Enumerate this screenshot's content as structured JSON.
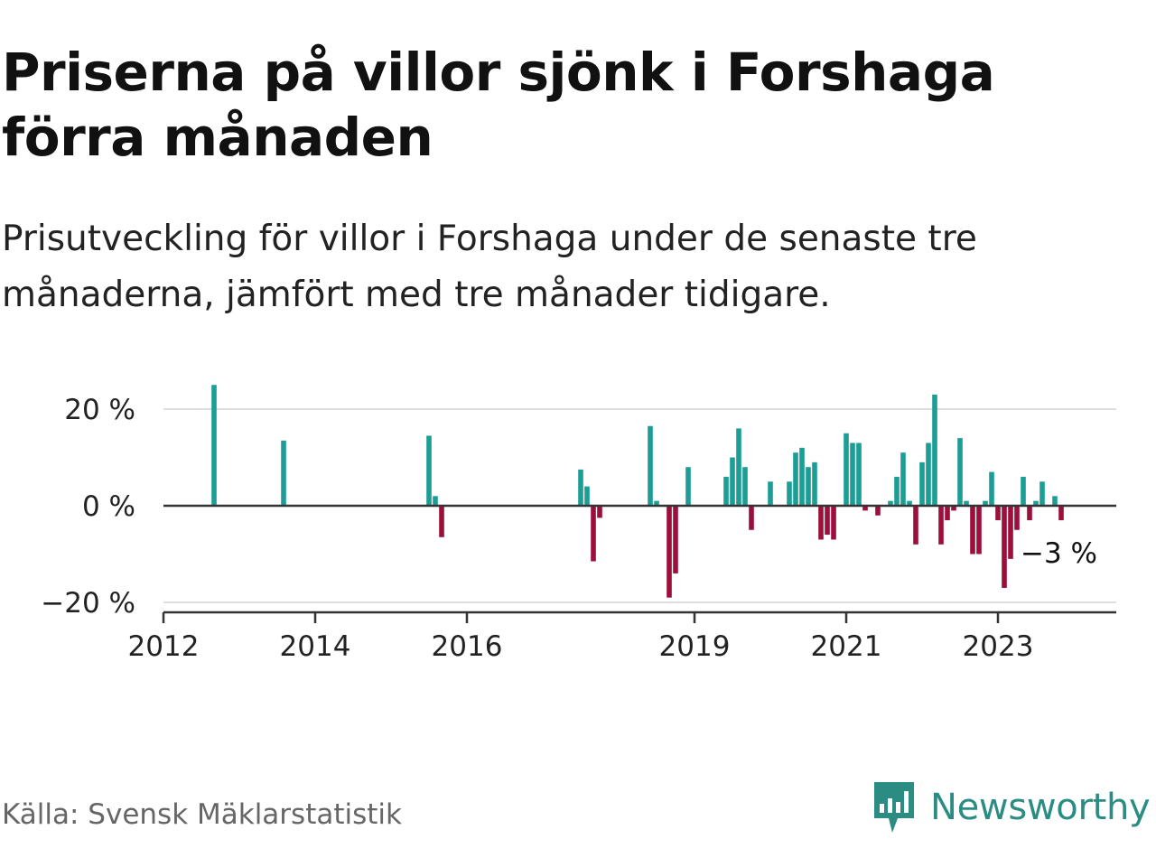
{
  "title": "Priserna på villor sjönk i Forshaga förra månaden",
  "subtitle": "Prisutveckling för villor i Forshaga under de senaste tre månaderna, jämfört med tre månader tidigare.",
  "source": "Källa: Svensk Mäklarstatistik",
  "brand": "Newsworthy",
  "colors": {
    "positive": "#1a9e96",
    "negative": "#9c0f3a",
    "brand": "#2a8c82",
    "grid": "#dddddd",
    "axis": "#333333"
  },
  "chart_data": {
    "type": "bar",
    "title": "Priserna på villor sjönk i Forshaga förra månaden",
    "subtitle": "Prisutveckling för villor i Forshaga under de senaste tre månaderna, jämfört med tre månader tidigare.",
    "xlabel": "",
    "ylabel": "",
    "ylim": [
      -22,
      26
    ],
    "yticks": [
      {
        "value": 20,
        "label": "20 %"
      },
      {
        "value": 0,
        "label": "0 %"
      },
      {
        "value": -20,
        "label": "−20 %"
      }
    ],
    "xlim": [
      "2012-01",
      "2024-06"
    ],
    "xticks": [
      {
        "date": "2012-01",
        "label": "2012"
      },
      {
        "date": "2014-01",
        "label": "2014"
      },
      {
        "date": "2016-01",
        "label": "2016"
      },
      {
        "date": "2019-01",
        "label": "2019"
      },
      {
        "date": "2021-01",
        "label": "2021"
      },
      {
        "date": "2023-01",
        "label": "2023"
      }
    ],
    "grid": true,
    "last_value_label": "−3 %",
    "series": [
      {
        "unit": "%",
        "points": [
          {
            "x": "2012-09",
            "y": 25
          },
          {
            "x": "2013-08",
            "y": 13.5
          },
          {
            "x": "2015-07",
            "y": 14.5
          },
          {
            "x": "2015-08",
            "y": 2
          },
          {
            "x": "2015-09",
            "y": -6.5
          },
          {
            "x": "2017-07",
            "y": 7.5
          },
          {
            "x": "2017-08",
            "y": 4
          },
          {
            "x": "2017-09",
            "y": -11.5
          },
          {
            "x": "2017-10",
            "y": -2.5
          },
          {
            "x": "2018-06",
            "y": 16.5
          },
          {
            "x": "2018-07",
            "y": 1
          },
          {
            "x": "2018-09",
            "y": -19
          },
          {
            "x": "2018-10",
            "y": -14
          },
          {
            "x": "2018-12",
            "y": 8
          },
          {
            "x": "2019-06",
            "y": 6
          },
          {
            "x": "2019-07",
            "y": 10
          },
          {
            "x": "2019-08",
            "y": 16
          },
          {
            "x": "2019-09",
            "y": 8
          },
          {
            "x": "2019-10",
            "y": -5
          },
          {
            "x": "2020-01",
            "y": 5
          },
          {
            "x": "2020-04",
            "y": 5
          },
          {
            "x": "2020-05",
            "y": 11
          },
          {
            "x": "2020-06",
            "y": 12
          },
          {
            "x": "2020-07",
            "y": 8
          },
          {
            "x": "2020-08",
            "y": 9
          },
          {
            "x": "2020-09",
            "y": -7
          },
          {
            "x": "2020-10",
            "y": -6
          },
          {
            "x": "2020-11",
            "y": -7
          },
          {
            "x": "2021-01",
            "y": 15
          },
          {
            "x": "2021-02",
            "y": 13
          },
          {
            "x": "2021-03",
            "y": 13
          },
          {
            "x": "2021-04",
            "y": -1
          },
          {
            "x": "2021-06",
            "y": -2
          },
          {
            "x": "2021-08",
            "y": 1
          },
          {
            "x": "2021-09",
            "y": 6
          },
          {
            "x": "2021-10",
            "y": 11
          },
          {
            "x": "2021-11",
            "y": 1
          },
          {
            "x": "2021-12",
            "y": -8
          },
          {
            "x": "2022-01",
            "y": 9
          },
          {
            "x": "2022-02",
            "y": 13
          },
          {
            "x": "2022-03",
            "y": 23
          },
          {
            "x": "2022-04",
            "y": -8
          },
          {
            "x": "2022-05",
            "y": -3
          },
          {
            "x": "2022-06",
            "y": -1
          },
          {
            "x": "2022-07",
            "y": 14
          },
          {
            "x": "2022-08",
            "y": 1
          },
          {
            "x": "2022-09",
            "y": -10
          },
          {
            "x": "2022-10",
            "y": -10
          },
          {
            "x": "2022-11",
            "y": 1
          },
          {
            "x": "2022-12",
            "y": 7
          },
          {
            "x": "2023-01",
            "y": -3
          },
          {
            "x": "2023-02",
            "y": -17
          },
          {
            "x": "2023-03",
            "y": -11
          },
          {
            "x": "2023-04",
            "y": -5
          },
          {
            "x": "2023-05",
            "y": 6
          },
          {
            "x": "2023-06",
            "y": -3
          },
          {
            "x": "2023-07",
            "y": 1
          },
          {
            "x": "2023-08",
            "y": 5
          },
          {
            "x": "2023-10",
            "y": 2
          },
          {
            "x": "2023-11",
            "y": -3
          }
        ]
      }
    ]
  }
}
